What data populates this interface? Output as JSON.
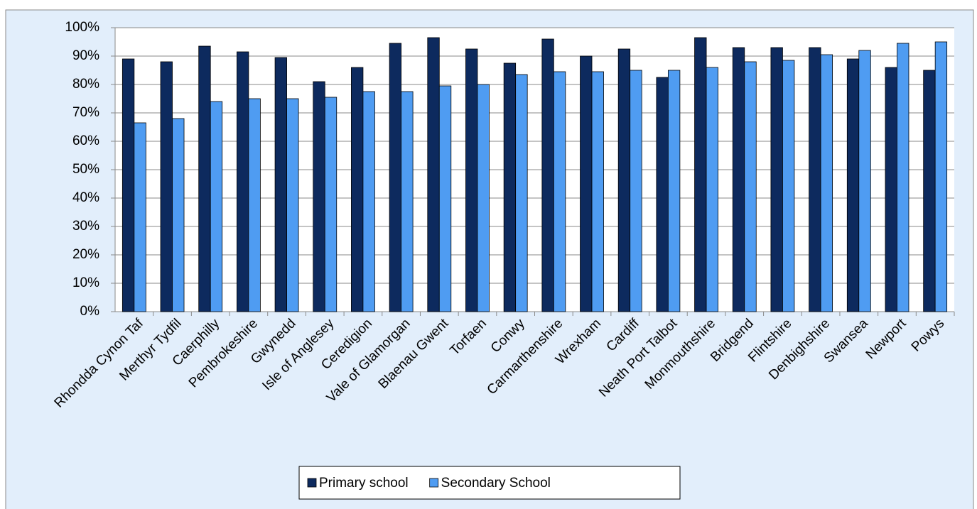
{
  "chart_data": {
    "type": "bar",
    "categories": [
      "Rhondda Cynon Taf",
      "Merthyr Tydfil",
      "Caerphilly",
      "Pembrokeshire",
      "Gwynedd",
      "Isle of Anglesey",
      "Ceredigion",
      "Vale of Glamorgan",
      "Blaenau Gwent",
      "Torfaen",
      "Conwy",
      "Carmarthenshire",
      "Wrexham",
      "Cardiff",
      "Neath Port Talbot",
      "Monmouthshire",
      "Bridgend",
      "Flintshire",
      "Denbighshire",
      "Swansea",
      "Newport",
      "Powys"
    ],
    "series": [
      {
        "name": "Primary school",
        "color": "#0d2a5e",
        "values": [
          89,
          88,
          93.5,
          91.5,
          89.5,
          81,
          86,
          94.5,
          96.5,
          92.5,
          87.5,
          96,
          90,
          92.5,
          82.5,
          96.5,
          93,
          93,
          93,
          89,
          86,
          85
        ]
      },
      {
        "name": "Secondary School",
        "color": "#4f9cf2",
        "values": [
          66.5,
          68,
          74,
          75,
          75,
          75.5,
          77.5,
          77.5,
          79.5,
          80,
          83.5,
          84.5,
          84.5,
          85,
          85,
          86,
          88,
          88.5,
          90.5,
          92,
          94.5,
          95
        ]
      }
    ],
    "ylim": [
      0,
      100
    ],
    "yticks": [
      {
        "value": 0,
        "label": "0%"
      },
      {
        "value": 10,
        "label": "10%"
      },
      {
        "value": 20,
        "label": "20%"
      },
      {
        "value": 30,
        "label": "30%"
      },
      {
        "value": 40,
        "label": "40%"
      },
      {
        "value": 50,
        "label": "50%"
      },
      {
        "value": 60,
        "label": "60%"
      },
      {
        "value": 70,
        "label": "70%"
      },
      {
        "value": 80,
        "label": "80%"
      },
      {
        "value": 90,
        "label": "90%"
      },
      {
        "value": 100,
        "label": "100%"
      }
    ],
    "grid": true,
    "legend": "bottom"
  }
}
